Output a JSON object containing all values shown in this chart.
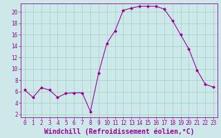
{
  "x": [
    0,
    1,
    2,
    3,
    4,
    5,
    6,
    7,
    8,
    9,
    10,
    11,
    12,
    13,
    14,
    15,
    16,
    17,
    18,
    19,
    20,
    21,
    22,
    23
  ],
  "y": [
    6.3,
    5.0,
    6.7,
    6.3,
    5.0,
    5.7,
    5.8,
    5.8,
    2.5,
    9.3,
    14.5,
    16.7,
    20.3,
    20.7,
    21.0,
    21.0,
    21.0,
    20.5,
    18.5,
    16.0,
    13.5,
    9.8,
    7.3,
    6.8
  ],
  "line_color": "#990099",
  "marker": "D",
  "marker_size": 2,
  "bg_color": "#cce8e8",
  "grid_color": "#aacccc",
  "xlabel": "Windchill (Refroidissement éolien,°C)",
  "ylim": [
    1.5,
    21.5
  ],
  "xlim": [
    -0.5,
    23.5
  ],
  "yticks": [
    2,
    4,
    6,
    8,
    10,
    12,
    14,
    16,
    18,
    20
  ],
  "xticks": [
    0,
    1,
    2,
    3,
    4,
    5,
    6,
    7,
    8,
    9,
    10,
    11,
    12,
    13,
    14,
    15,
    16,
    17,
    18,
    19,
    20,
    21,
    22,
    23
  ],
  "tick_label_fontsize": 5.5,
  "xlabel_fontsize": 7
}
